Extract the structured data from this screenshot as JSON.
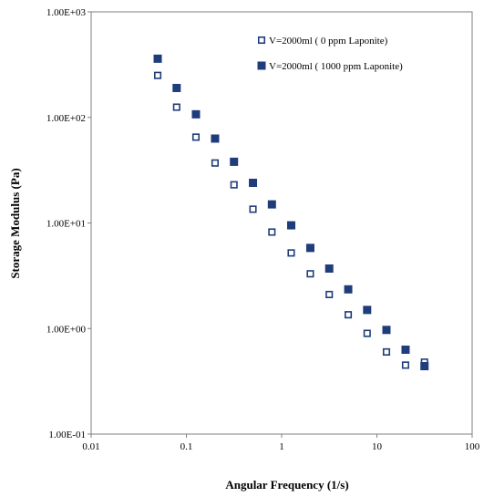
{
  "chart_data": {
    "type": "scatter",
    "xlabel": "Angular Frequency (1/s)",
    "ylabel": "Storage Modulus (Pa)",
    "xscale": "log",
    "yscale": "log",
    "xlim": [
      0.01,
      100
    ],
    "ylim": [
      0.1,
      1000
    ],
    "x_ticks": [
      0.01,
      0.1,
      1,
      10,
      100
    ],
    "x_tick_labels": [
      "0.01",
      "0.1",
      "1",
      "10",
      "100"
    ],
    "y_ticks": [
      0.1,
      1,
      10,
      100,
      1000
    ],
    "y_tick_labels": [
      "1.00E-01",
      "1.00E+00",
      "1.00E+01",
      "1.00E+02",
      "1.00E+03"
    ],
    "grid": false,
    "legend_position": "top-right",
    "series": [
      {
        "name": "V=2000ml ( 0 ppm Laponite)",
        "marker": "open-square",
        "color": "#1f3d7a",
        "x": [
          0.05,
          0.079,
          0.126,
          0.2,
          0.316,
          0.5,
          0.79,
          1.26,
          2.0,
          3.16,
          5.0,
          7.9,
          12.6,
          20.0,
          31.6
        ],
        "y": [
          250,
          125,
          65,
          37,
          23,
          13.5,
          8.2,
          5.2,
          3.3,
          2.1,
          1.35,
          0.9,
          0.6,
          0.45,
          0.48
        ]
      },
      {
        "name": "V=2000ml ( 1000 ppm Laponite)",
        "marker": "filled-square",
        "color": "#1f3d7a",
        "x": [
          0.05,
          0.079,
          0.126,
          0.2,
          0.316,
          0.5,
          0.79,
          1.26,
          2.0,
          3.16,
          5.0,
          7.9,
          12.6,
          20.0,
          31.6
        ],
        "y": [
          360,
          190,
          107,
          63,
          38,
          24,
          15,
          9.5,
          5.8,
          3.7,
          2.35,
          1.5,
          0.97,
          0.63,
          0.44
        ]
      }
    ]
  }
}
